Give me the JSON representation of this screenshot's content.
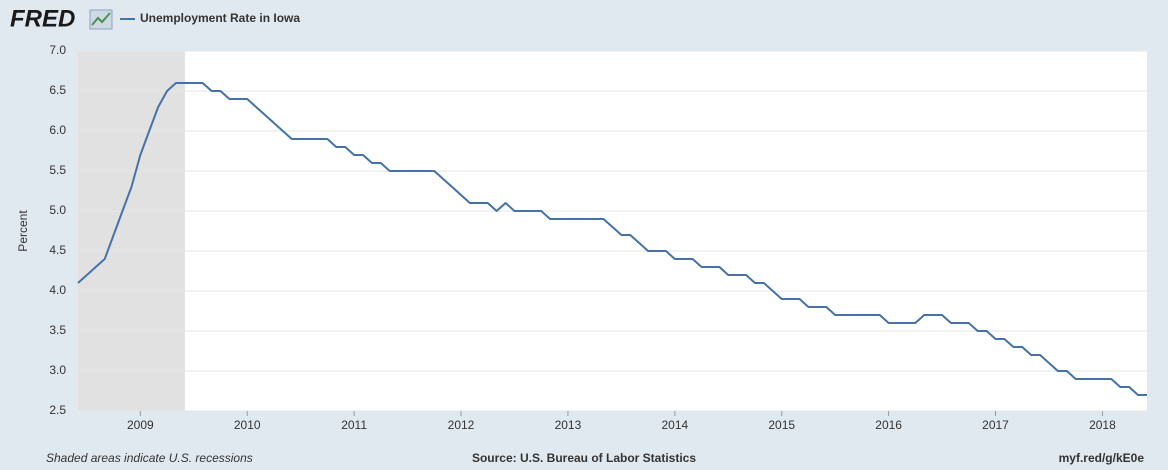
{
  "logo": "FRED",
  "footer": {
    "note": "Shaded areas indicate U.S. recessions",
    "source": "Source: U.S. Bureau of Labor Statistics",
    "link": "myf.red/g/kE0e"
  },
  "chart_data": {
    "type": "line",
    "y_label": "Percent",
    "grid": true,
    "recession": {
      "start": 2008.417,
      "end": 2009.417,
      "color": "#e1e1e1"
    },
    "xlim": [
      2008.417,
      2018.417
    ],
    "xticks": [
      2009,
      2010,
      2011,
      2012,
      2013,
      2014,
      2015,
      2016,
      2017,
      2018
    ],
    "ylim": [
      2.5,
      7
    ],
    "yticks": [
      2.5,
      {
        "value": 3,
        "label": "3.0"
      },
      3.5,
      {
        "value": 4,
        "label": "4.0"
      },
      4.5,
      {
        "value": 5,
        "label": "5.0"
      },
      5.5,
      {
        "value": 6,
        "label": "6.0"
      },
      6.5,
      {
        "value": 7,
        "label": "7.0"
      }
    ],
    "x": [
      2008.417,
      2008.5,
      2008.583,
      2008.667,
      2008.75,
      2008.833,
      2008.917,
      2009,
      2009.083,
      2009.167,
      2009.25,
      2009.333,
      2009.417,
      2009.5,
      2009.583,
      2009.667,
      2009.75,
      2009.833,
      2009.917,
      2010,
      2010.083,
      2010.167,
      2010.25,
      2010.333,
      2010.417,
      2010.5,
      2010.583,
      2010.667,
      2010.75,
      2010.833,
      2010.917,
      2011,
      2011.083,
      2011.167,
      2011.25,
      2011.333,
      2011.417,
      2011.5,
      2011.583,
      2011.667,
      2011.75,
      2011.833,
      2011.917,
      2012,
      2012.083,
      2012.167,
      2012.25,
      2012.333,
      2012.417,
      2012.5,
      2012.583,
      2012.667,
      2012.75,
      2012.833,
      2012.917,
      2013,
      2013.083,
      2013.167,
      2013.25,
      2013.333,
      2013.417,
      2013.5,
      2013.583,
      2013.667,
      2013.75,
      2013.833,
      2013.917,
      2014,
      2014.083,
      2014.167,
      2014.25,
      2014.333,
      2014.417,
      2014.5,
      2014.583,
      2014.667,
      2014.75,
      2014.833,
      2014.917,
      2015,
      2015.083,
      2015.167,
      2015.25,
      2015.333,
      2015.417,
      2015.5,
      2015.583,
      2015.667,
      2015.75,
      2015.833,
      2015.917,
      2016,
      2016.083,
      2016.167,
      2016.25,
      2016.333,
      2016.417,
      2016.5,
      2016.583,
      2016.667,
      2016.75,
      2016.833,
      2016.917,
      2017,
      2017.083,
      2017.167,
      2017.25,
      2017.333,
      2017.417,
      2017.5,
      2017.583,
      2017.667,
      2017.75,
      2017.833,
      2017.917,
      2018,
      2018.083,
      2018.167,
      2018.25,
      2018.333,
      2018.417
    ],
    "series": [
      {
        "name": "Unemployment Rate in Iowa",
        "color": "#4572a7",
        "values": [
          4.1,
          4.2,
          4.3,
          4.4,
          4.7,
          5.0,
          5.3,
          5.7,
          6.0,
          6.3,
          6.5,
          6.6,
          6.6,
          6.6,
          6.6,
          6.5,
          6.5,
          6.4,
          6.4,
          6.4,
          6.3,
          6.2,
          6.1,
          6.0,
          5.9,
          5.9,
          5.9,
          5.9,
          5.9,
          5.8,
          5.8,
          5.7,
          5.7,
          5.6,
          5.6,
          5.5,
          5.5,
          5.5,
          5.5,
          5.5,
          5.5,
          5.4,
          5.3,
          5.2,
          5.1,
          5.1,
          5.1,
          5.0,
          5.1,
          5.0,
          5.0,
          5.0,
          5.0,
          4.9,
          4.9,
          4.9,
          4.9,
          4.9,
          4.9,
          4.9,
          4.8,
          4.7,
          4.7,
          4.6,
          4.5,
          4.5,
          4.5,
          4.4,
          4.4,
          4.4,
          4.3,
          4.3,
          4.3,
          4.2,
          4.2,
          4.2,
          4.1,
          4.1,
          4.0,
          3.9,
          3.9,
          3.9,
          3.8,
          3.8,
          3.8,
          3.7,
          3.7,
          3.7,
          3.7,
          3.7,
          3.7,
          3.6,
          3.6,
          3.6,
          3.6,
          3.7,
          3.7,
          3.7,
          3.6,
          3.6,
          3.6,
          3.5,
          3.5,
          3.4,
          3.4,
          3.3,
          3.3,
          3.2,
          3.2,
          3.1,
          3.0,
          3.0,
          2.9,
          2.9,
          2.9,
          2.9,
          2.9,
          2.8,
          2.8,
          2.7,
          2.7
        ]
      }
    ]
  }
}
